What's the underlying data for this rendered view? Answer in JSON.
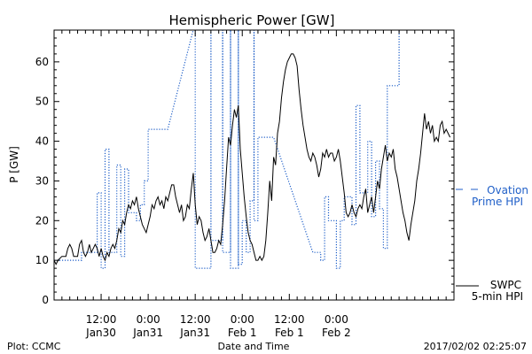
{
  "chart_data": {
    "type": "line",
    "title": "Hemispheric Power [GW]",
    "ylabel": "P [GW]",
    "xlabel": "Date and Time",
    "ylim": [
      0,
      68
    ],
    "xlim_hours": [
      0,
      102
    ],
    "yticks": [
      0,
      10,
      20,
      30,
      40,
      50,
      60
    ],
    "xticks": [
      {
        "hour": 12,
        "line1": "12:00",
        "line2": "Jan30"
      },
      {
        "hour": 24,
        "line1": "0:00",
        "line2": "Jan31"
      },
      {
        "hour": 36,
        "line1": "12:00",
        "line2": "Jan31"
      },
      {
        "hour": 48,
        "line1": "0:00",
        "line2": "Feb 1"
      },
      {
        "hour": 60,
        "line1": "12:00",
        "line2": "Feb 1"
      },
      {
        "hour": 72,
        "line1": "0:00",
        "line2": "Feb 2"
      }
    ],
    "series": [
      {
        "name": "SWPC 5-min HPI",
        "color": "#000000",
        "style": "solid",
        "legend_line1": "SWPC",
        "legend_line2": "5-min HPI",
        "points": [
          [
            0,
            10
          ],
          [
            0.5,
            9
          ],
          [
            1,
            10
          ],
          [
            2,
            11
          ],
          [
            3,
            11
          ],
          [
            3.5,
            13
          ],
          [
            4,
            14
          ],
          [
            4.5,
            13
          ],
          [
            5,
            11
          ],
          [
            6,
            11
          ],
          [
            6.5,
            14
          ],
          [
            7,
            15
          ],
          [
            7.5,
            12
          ],
          [
            8,
            11
          ],
          [
            8.5,
            12
          ],
          [
            9,
            14
          ],
          [
            9.5,
            12
          ],
          [
            10,
            13
          ],
          [
            10.5,
            14
          ],
          [
            11,
            13
          ],
          [
            11.5,
            11
          ],
          [
            12,
            13
          ],
          [
            12.5,
            11
          ],
          [
            13,
            10
          ],
          [
            13.5,
            12
          ],
          [
            14,
            11
          ],
          [
            14.5,
            13
          ],
          [
            15,
            14
          ],
          [
            15.5,
            13
          ],
          [
            16,
            15
          ],
          [
            16.5,
            18
          ],
          [
            17,
            17
          ],
          [
            17.5,
            20
          ],
          [
            18,
            19
          ],
          [
            18.5,
            22
          ],
          [
            19,
            24
          ],
          [
            19.5,
            23
          ],
          [
            20,
            25
          ],
          [
            20.5,
            24
          ],
          [
            21,
            26
          ],
          [
            21.5,
            23
          ],
          [
            22,
            21
          ],
          [
            22.5,
            19
          ],
          [
            23,
            18
          ],
          [
            23.5,
            17
          ],
          [
            24,
            19
          ],
          [
            24.5,
            21
          ],
          [
            25,
            24
          ],
          [
            25.5,
            23
          ],
          [
            26,
            25
          ],
          [
            26.5,
            26
          ],
          [
            27,
            24
          ],
          [
            27.5,
            25
          ],
          [
            28,
            23
          ],
          [
            28.5,
            26
          ],
          [
            29,
            25
          ],
          [
            29.5,
            27
          ],
          [
            30,
            29
          ],
          [
            30.5,
            29
          ],
          [
            31,
            26
          ],
          [
            31.5,
            24
          ],
          [
            32,
            22
          ],
          [
            32.5,
            24
          ],
          [
            33,
            20
          ],
          [
            33.5,
            21
          ],
          [
            34,
            24
          ],
          [
            34.5,
            23
          ],
          [
            35,
            28
          ],
          [
            35.5,
            32
          ],
          [
            36,
            24
          ],
          [
            36.5,
            19
          ],
          [
            37,
            21
          ],
          [
            37.5,
            20
          ],
          [
            38,
            17
          ],
          [
            38.5,
            15
          ],
          [
            39,
            16
          ],
          [
            39.5,
            18
          ],
          [
            40,
            15
          ],
          [
            40.5,
            12
          ],
          [
            41,
            12
          ],
          [
            41.5,
            13
          ],
          [
            42,
            15
          ],
          [
            42.5,
            14
          ],
          [
            43,
            19
          ],
          [
            43.5,
            25
          ],
          [
            44,
            33
          ],
          [
            44.5,
            41
          ],
          [
            45,
            39
          ],
          [
            45.5,
            44
          ],
          [
            46,
            48
          ],
          [
            46.5,
            46
          ],
          [
            47,
            49
          ],
          [
            47.5,
            38
          ],
          [
            48,
            32
          ],
          [
            48.5,
            26
          ],
          [
            49,
            21
          ],
          [
            49.5,
            17
          ],
          [
            50,
            15
          ],
          [
            50.5,
            14
          ],
          [
            51,
            12
          ],
          [
            51.5,
            10
          ],
          [
            52,
            10
          ],
          [
            52.5,
            11
          ],
          [
            53,
            10
          ],
          [
            53.5,
            11
          ],
          [
            54,
            15
          ],
          [
            54.5,
            22
          ],
          [
            55,
            30
          ],
          [
            55.5,
            25
          ],
          [
            56,
            36
          ],
          [
            56.5,
            34
          ],
          [
            57,
            42
          ],
          [
            57.5,
            45
          ],
          [
            58,
            51
          ],
          [
            58.5,
            55
          ],
          [
            59,
            58
          ],
          [
            59.5,
            60
          ],
          [
            60,
            61
          ],
          [
            60.5,
            62
          ],
          [
            61,
            62
          ],
          [
            61.5,
            61
          ],
          [
            62,
            59
          ],
          [
            62.5,
            53
          ],
          [
            63,
            48
          ],
          [
            63.5,
            44
          ],
          [
            64,
            41
          ],
          [
            64.5,
            38
          ],
          [
            65,
            36
          ],
          [
            65.5,
            35
          ],
          [
            66,
            37
          ],
          [
            66.5,
            36
          ],
          [
            67,
            34
          ],
          [
            67.5,
            31
          ],
          [
            68,
            33
          ],
          [
            68.5,
            37
          ],
          [
            69,
            36
          ],
          [
            69.5,
            38
          ],
          [
            70,
            36
          ],
          [
            70.5,
            37
          ],
          [
            71,
            37
          ],
          [
            71.5,
            35
          ],
          [
            72,
            36
          ],
          [
            72.5,
            38
          ],
          [
            73,
            35
          ],
          [
            73.5,
            31
          ],
          [
            74,
            27
          ],
          [
            74.5,
            22
          ],
          [
            75,
            21
          ],
          [
            75.5,
            22
          ],
          [
            76,
            24
          ],
          [
            76.5,
            22
          ],
          [
            77,
            21
          ],
          [
            77.5,
            23
          ],
          [
            78,
            24
          ],
          [
            78.5,
            23
          ],
          [
            79,
            26
          ],
          [
            79.5,
            28
          ],
          [
            80,
            22
          ],
          [
            80.5,
            24
          ],
          [
            81,
            26
          ],
          [
            81.5,
            22
          ],
          [
            82,
            26
          ],
          [
            82.5,
            30
          ],
          [
            83,
            28
          ],
          [
            83.5,
            33
          ],
          [
            84,
            36
          ],
          [
            84.5,
            39
          ],
          [
            85,
            35
          ],
          [
            85.5,
            37
          ],
          [
            86,
            36
          ],
          [
            86.5,
            38
          ],
          [
            87,
            33
          ],
          [
            87.5,
            31
          ],
          [
            88,
            28
          ],
          [
            88.5,
            25
          ],
          [
            89,
            22
          ],
          [
            89.5,
            20
          ],
          [
            90,
            17
          ],
          [
            90.5,
            15
          ],
          [
            91,
            19
          ],
          [
            91.5,
            22
          ],
          [
            92,
            25
          ],
          [
            92.5,
            30
          ],
          [
            93,
            33
          ],
          [
            93.5,
            37
          ],
          [
            94,
            42
          ],
          [
            94.5,
            47
          ],
          [
            95,
            43
          ],
          [
            95.5,
            45
          ],
          [
            96,
            42
          ],
          [
            96.5,
            44
          ],
          [
            97,
            40
          ],
          [
            97.5,
            41
          ],
          [
            98,
            40
          ],
          [
            98.5,
            44
          ],
          [
            99,
            45
          ],
          [
            99.5,
            42
          ],
          [
            100,
            43
          ],
          [
            100.5,
            42
          ],
          [
            101,
            41
          ]
        ]
      },
      {
        "name": "Ovation Prime HPI",
        "color": "#1f5fc8",
        "style": "dotted",
        "legend_line1": "Ovation",
        "legend_line2": "Prime HPI",
        "points": [
          [
            0,
            10
          ],
          [
            7,
            10
          ],
          [
            7,
            12
          ],
          [
            11,
            12
          ],
          [
            11,
            27
          ],
          [
            12,
            27
          ],
          [
            12,
            8
          ],
          [
            13,
            8
          ],
          [
            13,
            38
          ],
          [
            14,
            38
          ],
          [
            14,
            12
          ],
          [
            16,
            12
          ],
          [
            16,
            34
          ],
          [
            17,
            34
          ],
          [
            17,
            11
          ],
          [
            18,
            11
          ],
          [
            18,
            33
          ],
          [
            19,
            33
          ],
          [
            19,
            22
          ],
          [
            21,
            22
          ],
          [
            21,
            20
          ],
          [
            22,
            20
          ],
          [
            22,
            24
          ],
          [
            23,
            24
          ],
          [
            23,
            30
          ],
          [
            24,
            30
          ],
          [
            24,
            43
          ],
          [
            29,
            43
          ],
          [
            36,
            70
          ],
          [
            36,
            8
          ],
          [
            40,
            8
          ],
          [
            40,
            70
          ],
          [
            40,
            15
          ],
          [
            43,
            15
          ],
          [
            43,
            70
          ],
          [
            43,
            12
          ],
          [
            45,
            12
          ],
          [
            45,
            70
          ],
          [
            45,
            8
          ],
          [
            47,
            8
          ],
          [
            47,
            70
          ],
          [
            47,
            9
          ],
          [
            48,
            9
          ],
          [
            48,
            20
          ],
          [
            49,
            20
          ],
          [
            49,
            12
          ],
          [
            50,
            12
          ],
          [
            50,
            25
          ],
          [
            51,
            25
          ],
          [
            51,
            70
          ],
          [
            51,
            20
          ],
          [
            52,
            20
          ],
          [
            52,
            41
          ],
          [
            56,
            41
          ],
          [
            66,
            12
          ],
          [
            68,
            12
          ],
          [
            68,
            10
          ],
          [
            69,
            10
          ],
          [
            69,
            26
          ],
          [
            70,
            26
          ],
          [
            70,
            20
          ],
          [
            72,
            20
          ],
          [
            72,
            8
          ],
          [
            73,
            8
          ],
          [
            73,
            20
          ],
          [
            74,
            20
          ],
          [
            74,
            26
          ],
          [
            76,
            26
          ],
          [
            76,
            19
          ],
          [
            77,
            19
          ],
          [
            77,
            49
          ],
          [
            78,
            49
          ],
          [
            78,
            27
          ],
          [
            80,
            27
          ],
          [
            80,
            40
          ],
          [
            81,
            40
          ],
          [
            81,
            21
          ],
          [
            82,
            21
          ],
          [
            82,
            35
          ],
          [
            83,
            35
          ],
          [
            83,
            23
          ],
          [
            84,
            23
          ],
          [
            84,
            13
          ],
          [
            85,
            13
          ],
          [
            85,
            54
          ],
          [
            88,
            54
          ],
          [
            88,
            70
          ]
        ]
      }
    ]
  },
  "footer": {
    "left": "Plot: CCMC",
    "right": "2017/02/02 02:25:07"
  }
}
